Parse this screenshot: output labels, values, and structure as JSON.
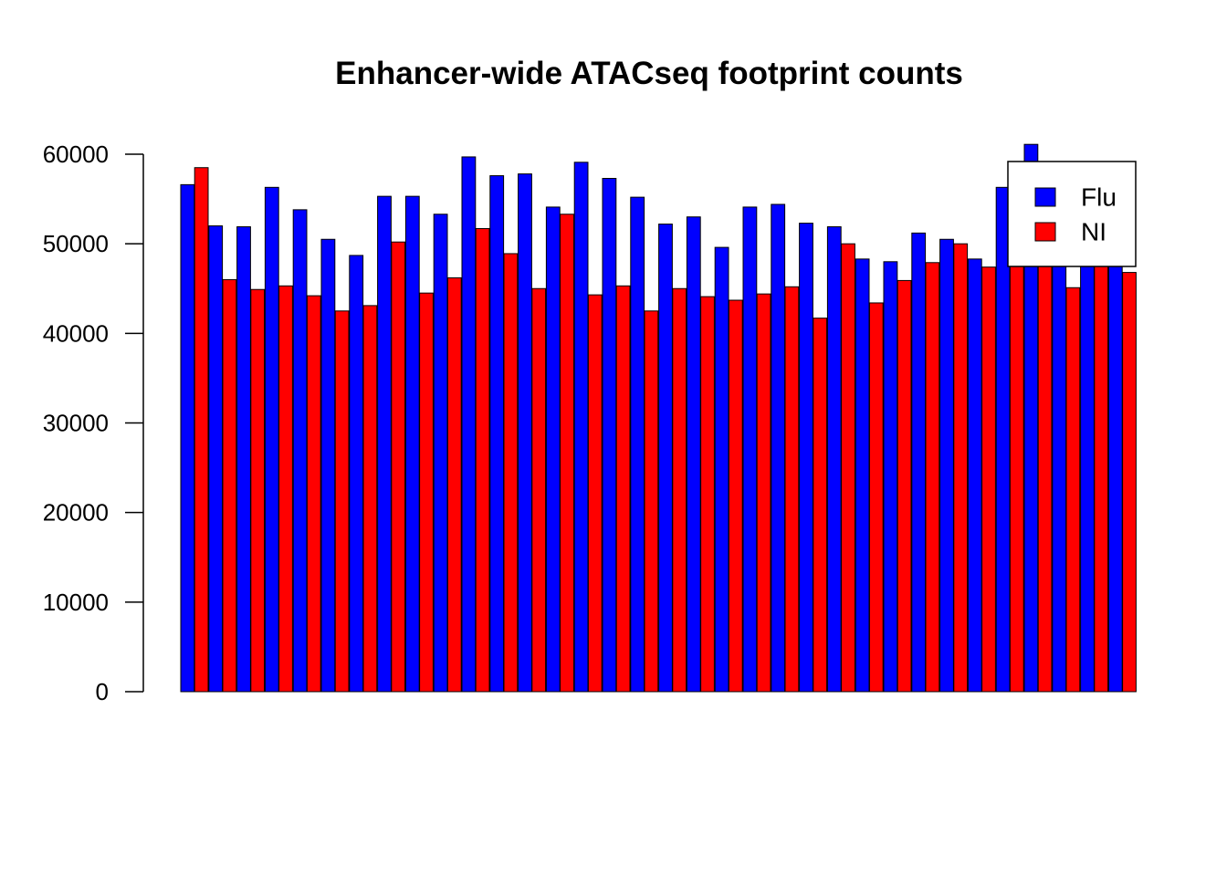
{
  "chart_data": {
    "type": "bar",
    "title": "Enhancer-wide ATACseq footprint counts",
    "xlabel": "",
    "ylabel": "",
    "ylim": [
      0,
      60000
    ],
    "yticks": [
      "0",
      "10000",
      "20000",
      "30000",
      "40000",
      "50000",
      "60000"
    ],
    "ytick_values": [
      0,
      10000,
      20000,
      30000,
      40000,
      50000,
      60000
    ],
    "grid": false,
    "legend_position": "top-right",
    "series": [
      {
        "name": "Flu",
        "color": "#0000ff",
        "values": [
          56600,
          52000,
          51900,
          56300,
          53800,
          50500,
          48700,
          55300,
          55300,
          53300,
          59700,
          57600,
          57800,
          54100,
          59100,
          57300,
          55200,
          52200,
          53000,
          49600,
          54100,
          54400,
          52300,
          51900,
          48300,
          48000,
          51200,
          50500,
          48300,
          56300,
          61100,
          53500,
          53200,
          52000
        ]
      },
      {
        "name": "NI",
        "color": "#ff0000",
        "values": [
          58500,
          46000,
          44900,
          45300,
          44200,
          42500,
          43100,
          50200,
          44500,
          46200,
          51700,
          48900,
          45000,
          53300,
          44300,
          45300,
          42500,
          45000,
          44100,
          43700,
          44400,
          45200,
          41700,
          50000,
          43400,
          45900,
          47900,
          50000,
          47400,
          54500,
          48200,
          45100,
          48500,
          46800
        ]
      }
    ]
  }
}
